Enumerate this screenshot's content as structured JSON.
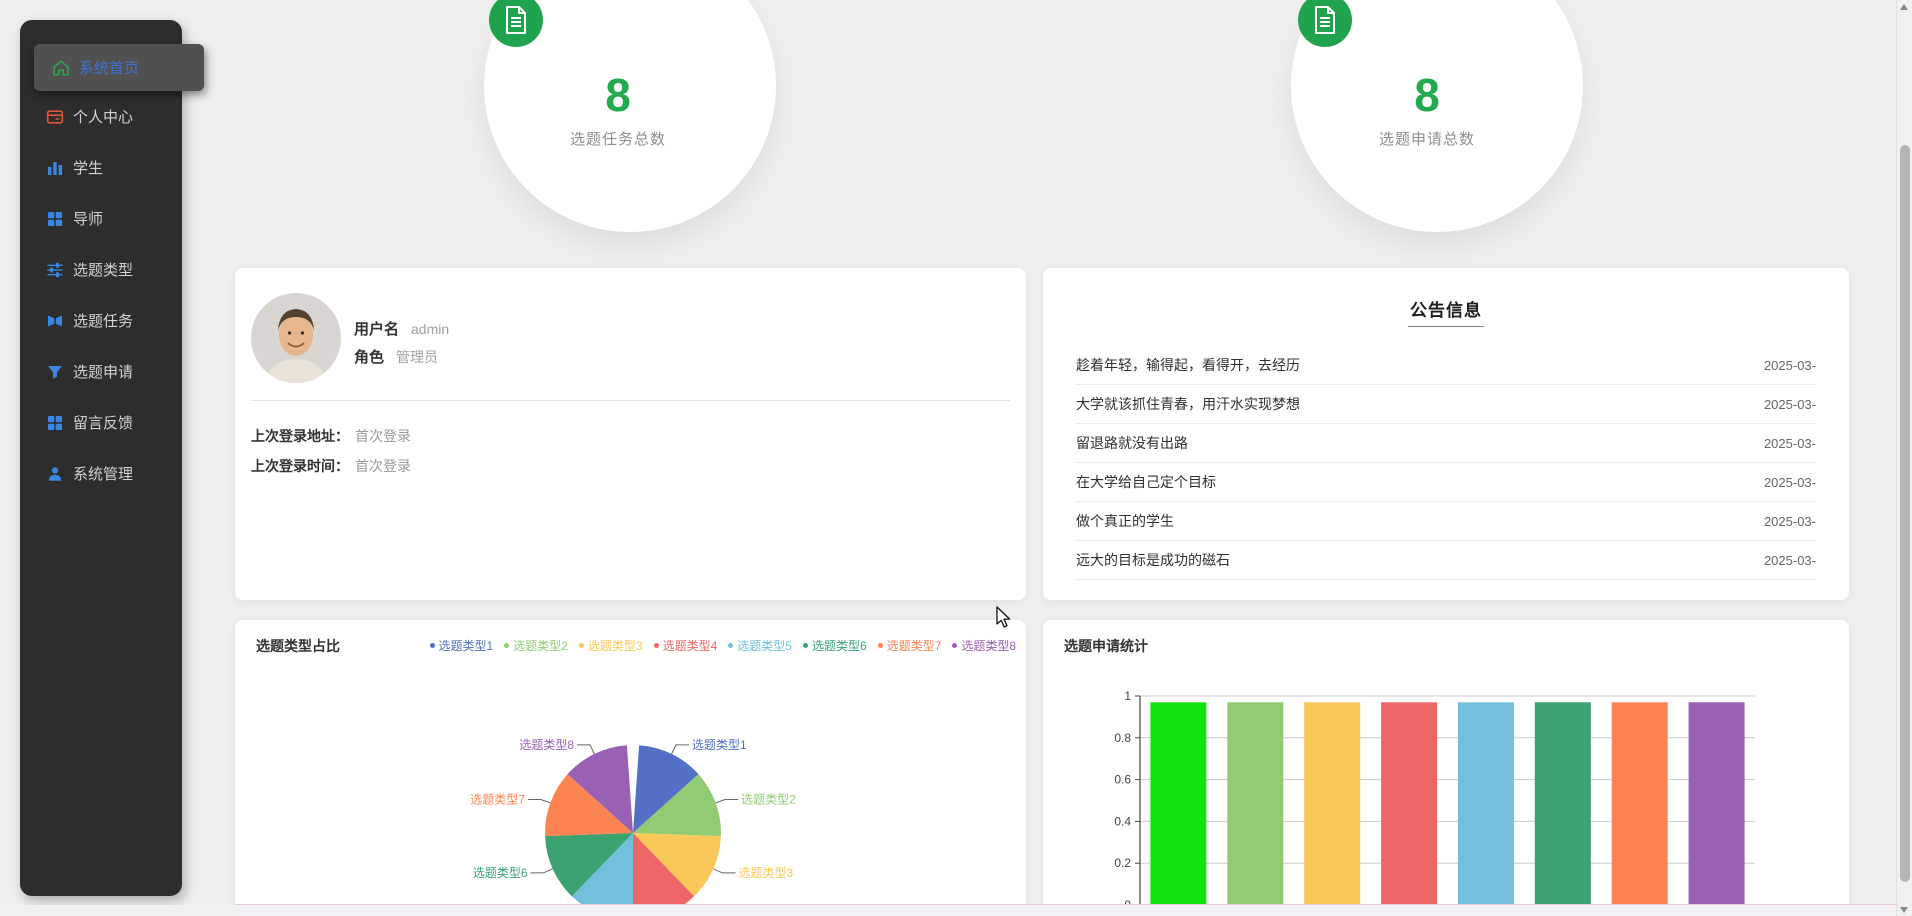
{
  "sidebar": {
    "items": [
      {
        "label": "系统首页",
        "icon": "home-icon",
        "active": true
      },
      {
        "label": "个人中心",
        "icon": "id-card-icon",
        "active": false
      },
      {
        "label": "学生",
        "icon": "bar-chart-icon",
        "active": false
      },
      {
        "label": "导师",
        "icon": "grid-icon",
        "active": false
      },
      {
        "label": "选题类型",
        "icon": "sliders-icon",
        "active": false
      },
      {
        "label": "选题任务",
        "icon": "brackets-icon",
        "active": false
      },
      {
        "label": "选题申请",
        "icon": "funnel-icon",
        "active": false
      },
      {
        "label": "留言反馈",
        "icon": "grid-icon",
        "active": false
      },
      {
        "label": "系统管理",
        "icon": "user-icon",
        "active": false
      }
    ]
  },
  "stats": [
    {
      "value": "8",
      "label": "选题任务总数",
      "icon": "document-icon"
    },
    {
      "value": "8",
      "label": "选题申请总数",
      "icon": "document-icon"
    }
  ],
  "profile": {
    "username_label": "用户名",
    "username": "admin",
    "role_label": "角色",
    "role": "管理员",
    "last_login_addr_label": "上次登录地址：",
    "last_login_addr": "首次登录",
    "last_login_time_label": "上次登录时间：",
    "last_login_time": "首次登录"
  },
  "announcements": {
    "title": "公告信息",
    "items": [
      {
        "text": "趁着年轻，输得起，看得开，去经历",
        "date": "2025-03-"
      },
      {
        "text": "大学就该抓住青春，用汗水实现梦想",
        "date": "2025-03-"
      },
      {
        "text": "留退路就没有出路",
        "date": "2025-03-"
      },
      {
        "text": "在大学给自己定个目标",
        "date": "2025-03-"
      },
      {
        "text": "做个真正的学生",
        "date": "2025-03-"
      },
      {
        "text": "远大的目标是成功的磁石",
        "date": "2025-03-"
      }
    ]
  },
  "colors": {
    "page_bg": "#efefef",
    "sidebar_bg": "#2d2d2d",
    "sidebar_active_text": "#3e74d6",
    "accent_green": "#21ab4e",
    "badge_green": "#1fa44d",
    "icon_blue": "#3a86e0",
    "icon_red": "#e0543c",
    "icon_green": "#2aa84f"
  },
  "chart_data": [
    {
      "type": "pie",
      "title": "选题类型占比",
      "legend_position": "top-right",
      "categories": [
        "选题类型1",
        "选题类型2",
        "选题类型3",
        "选题类型4",
        "选题类型5",
        "选题类型6",
        "选题类型7",
        "选题类型8"
      ],
      "values": [
        1,
        1,
        1,
        1,
        1,
        1,
        1,
        1
      ],
      "percent_each": 12.5,
      "colors": [
        "#5470c6",
        "#91cc75",
        "#fac858",
        "#ee6666",
        "#73c0de",
        "#3ba272",
        "#fc8452",
        "#9a60b4"
      ],
      "start_angle_deg": 4,
      "end_angle_deg": 356,
      "labels_visible": [
        "选题类型1",
        "选题类型2",
        "选题类型3",
        "选题类型6",
        "选题类型7",
        "选题类型8"
      ]
    },
    {
      "type": "bar",
      "title": "选题申请统计",
      "values": [
        0.97,
        0.97,
        0.97,
        0.97,
        0.97,
        0.97,
        0.97,
        0.97
      ],
      "colors": [
        "#10e310",
        "#91cc75",
        "#fac858",
        "#ee6666",
        "#73c0de",
        "#3ba272",
        "#fc8452",
        "#9a60b4"
      ],
      "ylim": [
        0,
        1
      ],
      "yticks": [
        0,
        0.2,
        0.4,
        0.6,
        0.8,
        1
      ],
      "grid": true,
      "x_labels_visible": false
    }
  ]
}
